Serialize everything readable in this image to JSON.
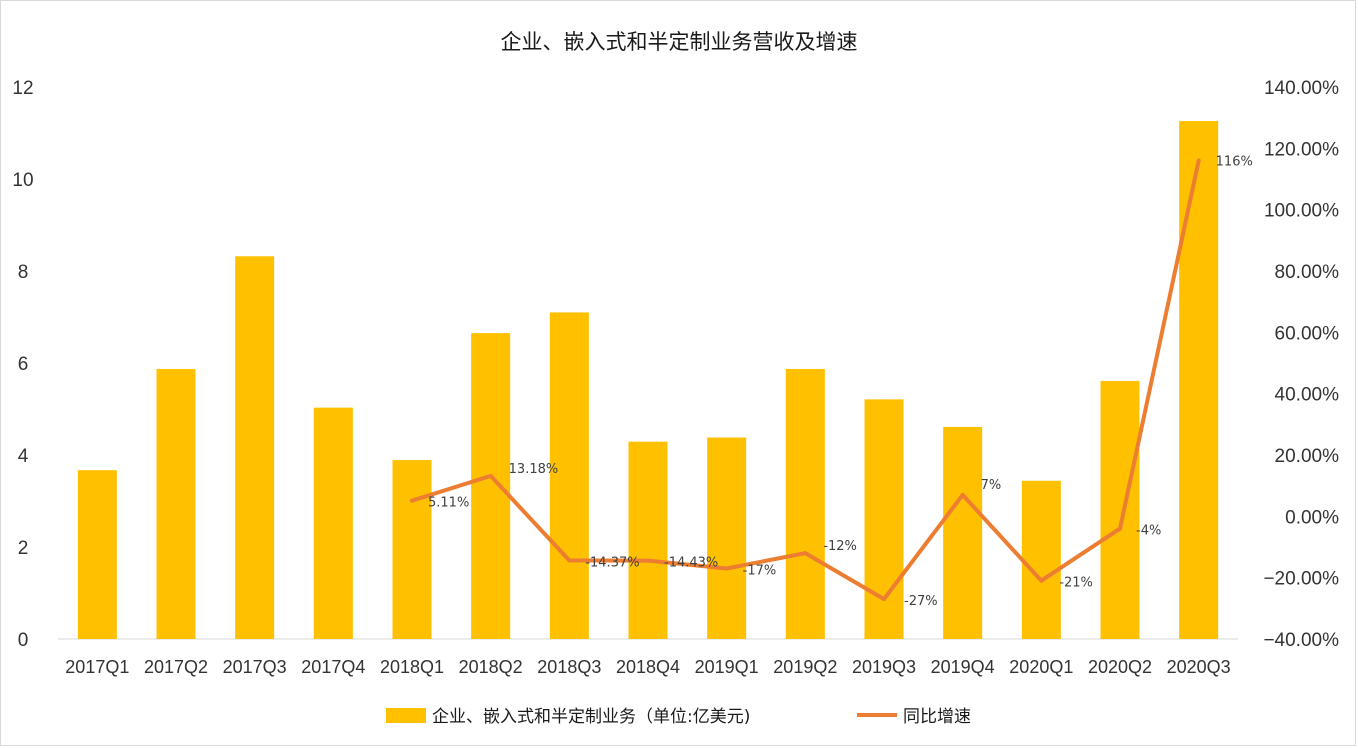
{
  "chart_data": {
    "type": "bar",
    "title": "企业、嵌入式和半定制业务营收及增速",
    "categories": [
      "2017Q1",
      "2017Q2",
      "2017Q3",
      "2017Q4",
      "2018Q1",
      "2018Q2",
      "2018Q3",
      "2018Q4",
      "2019Q1",
      "2019Q2",
      "2019Q3",
      "2019Q4",
      "2020Q1",
      "2020Q2",
      "2020Q3"
    ],
    "series": [
      {
        "name": "企业、嵌入式和半定制业务（单位:亿美元)",
        "type": "bar",
        "axis": "left",
        "color": "#FFC000",
        "values": [
          3.67,
          5.87,
          8.32,
          5.03,
          3.89,
          6.65,
          7.1,
          4.29,
          4.38,
          5.87,
          5.21,
          4.61,
          3.44,
          5.61,
          11.26
        ]
      },
      {
        "name": "同比增速",
        "type": "line",
        "axis": "right",
        "color": "#ED7D31",
        "values": [
          null,
          null,
          null,
          null,
          5.11,
          13.18,
          -14.37,
          -14.43,
          -17,
          -12,
          -27,
          7,
          -21,
          -4,
          116
        ],
        "labels": [
          null,
          null,
          null,
          null,
          "5.11%",
          "13.18%",
          "-14.37%",
          "-14.43%",
          "-17%",
          "-12%",
          "-27%",
          "7%",
          "-21%",
          "-4%",
          "116%"
        ]
      }
    ],
    "left_axis": {
      "ylim": [
        0,
        12
      ],
      "ticks": [
        0,
        2,
        4,
        6,
        8,
        10,
        12
      ],
      "tick_labels": [
        "0",
        "2",
        "4",
        "6",
        "8",
        "10",
        "12"
      ]
    },
    "right_axis": {
      "ylim": [
        -40,
        140
      ],
      "ticks": [
        -40,
        -20,
        0,
        20,
        40,
        60,
        80,
        100,
        120,
        140
      ],
      "tick_labels": [
        "−40.00%",
        "−20.00%",
        "0.00%",
        "20.00%",
        "40.00%",
        "60.00%",
        "80.00%",
        "100.00%",
        "120.00%",
        "140.00%"
      ]
    },
    "xlabel": "",
    "ylabel": "",
    "grid": false,
    "legend_position": "bottom"
  }
}
